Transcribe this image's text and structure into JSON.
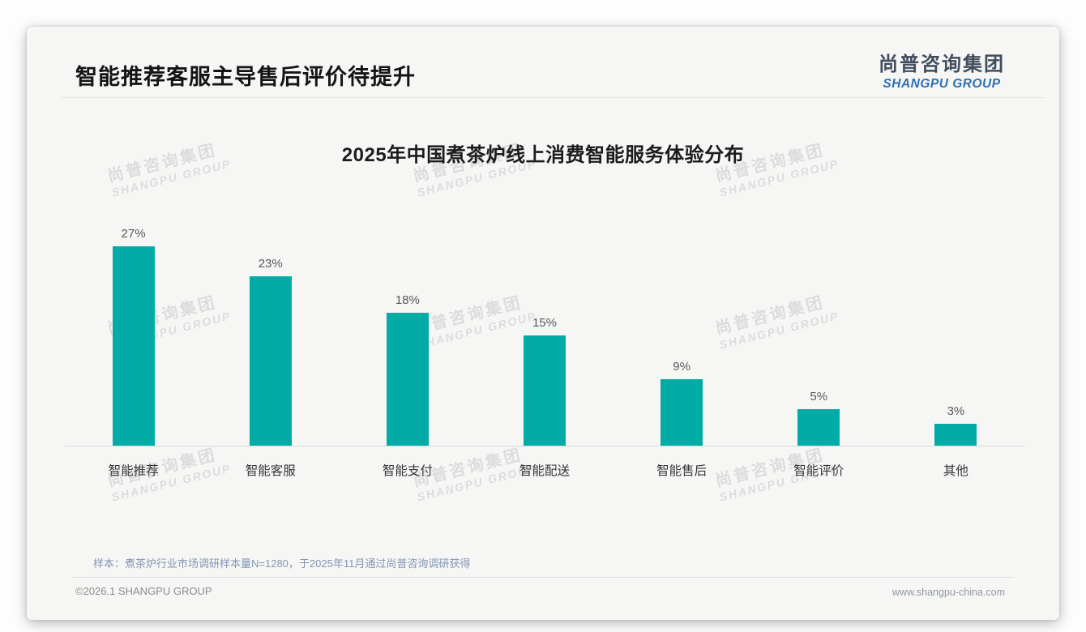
{
  "header": {
    "title": "智能推荐客服主导售后评价待提升"
  },
  "logo": {
    "cn": "尚普咨询集团",
    "en": "SHANGPU GROUP"
  },
  "watermark": {
    "cn": "尚普咨询集团",
    "en": "SHANGPU GROUP"
  },
  "note": "样本：煮茶炉行业市场调研样本量N=1280，于2025年11月通过尚普咨询调研获得",
  "footer": {
    "left": "©2026.1 SHANGPU GROUP",
    "right": "www.shangpu-china.com"
  },
  "chart_data": {
    "type": "bar",
    "title": "2025年中国煮茶炉线上消费智能服务体验分布",
    "categories": [
      "智能推荐",
      "智能客服",
      "智能支付",
      "智能配送",
      "智能售后",
      "智能评价",
      "其他"
    ],
    "values": [
      27,
      23,
      18,
      15,
      9,
      5,
      3
    ],
    "value_labels": [
      "27%",
      "23%",
      "18%",
      "15%",
      "9%",
      "5%",
      "3%"
    ],
    "bar_color": "#00aca5",
    "xlabel": "",
    "ylabel": "",
    "ylim": [
      0,
      30
    ],
    "grid": false,
    "legend": false
  }
}
